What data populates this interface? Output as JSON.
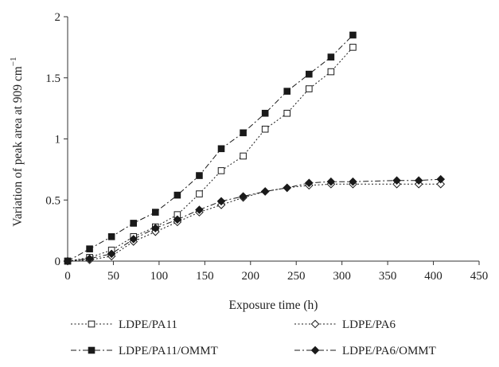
{
  "chart_data": {
    "type": "line",
    "xlabel": "Exposure time (h)",
    "ylabel": "Variation of peak area at 909 cm",
    "ylabel_sup": "−1",
    "xlim": [
      0,
      450
    ],
    "ylim": [
      0,
      2
    ],
    "x_ticks": [
      0,
      50,
      100,
      150,
      200,
      250,
      300,
      350,
      400,
      450
    ],
    "y_ticks": [
      0,
      0.5,
      1,
      1.5,
      2
    ],
    "x_tick_labels": [
      "0",
      "50",
      "100",
      "150",
      "200",
      "250",
      "300",
      "350",
      "400",
      "450"
    ],
    "y_tick_labels": [
      "0",
      "0.5",
      "1",
      "1.5",
      "2"
    ],
    "grid": false,
    "legend_position": "bottom",
    "series": [
      {
        "name": "LDPE/PA11",
        "marker": "square-open",
        "line": "dotted",
        "x": [
          0,
          24,
          48,
          72,
          96,
          120,
          144,
          168,
          192,
          216,
          240,
          264,
          288,
          312
        ],
        "y": [
          0,
          0.03,
          0.09,
          0.2,
          0.28,
          0.38,
          0.55,
          0.74,
          0.86,
          1.08,
          1.21,
          1.41,
          1.55,
          1.75
        ]
      },
      {
        "name": "LDPE/PA11/OMMT",
        "marker": "square-filled",
        "line": "dashdot",
        "x": [
          0,
          24,
          48,
          72,
          96,
          120,
          144,
          168,
          192,
          216,
          240,
          264,
          288,
          312
        ],
        "y": [
          0,
          0.1,
          0.2,
          0.31,
          0.4,
          0.54,
          0.7,
          0.92,
          1.05,
          1.21,
          1.39,
          1.53,
          1.67,
          1.85
        ]
      },
      {
        "name": "LDPE/PA6",
        "marker": "diamond-open",
        "line": "dotted",
        "x": [
          0,
          24,
          48,
          72,
          96,
          120,
          144,
          168,
          192,
          216,
          240,
          264,
          288,
          312,
          360,
          384,
          408
        ],
        "y": [
          0,
          0.01,
          0.04,
          0.16,
          0.24,
          0.32,
          0.4,
          0.46,
          0.52,
          0.57,
          0.6,
          0.62,
          0.63,
          0.63,
          0.63,
          0.63,
          0.63
        ]
      },
      {
        "name": "LDPE/PA6/OMMT",
        "marker": "diamond-filled",
        "line": "dashdot",
        "x": [
          0,
          24,
          48,
          72,
          96,
          120,
          144,
          168,
          192,
          216,
          240,
          264,
          288,
          312,
          360,
          384,
          408
        ],
        "y": [
          0,
          0.02,
          0.06,
          0.18,
          0.27,
          0.34,
          0.42,
          0.49,
          0.53,
          0.57,
          0.6,
          0.64,
          0.65,
          0.65,
          0.66,
          0.66,
          0.67
        ]
      }
    ]
  }
}
